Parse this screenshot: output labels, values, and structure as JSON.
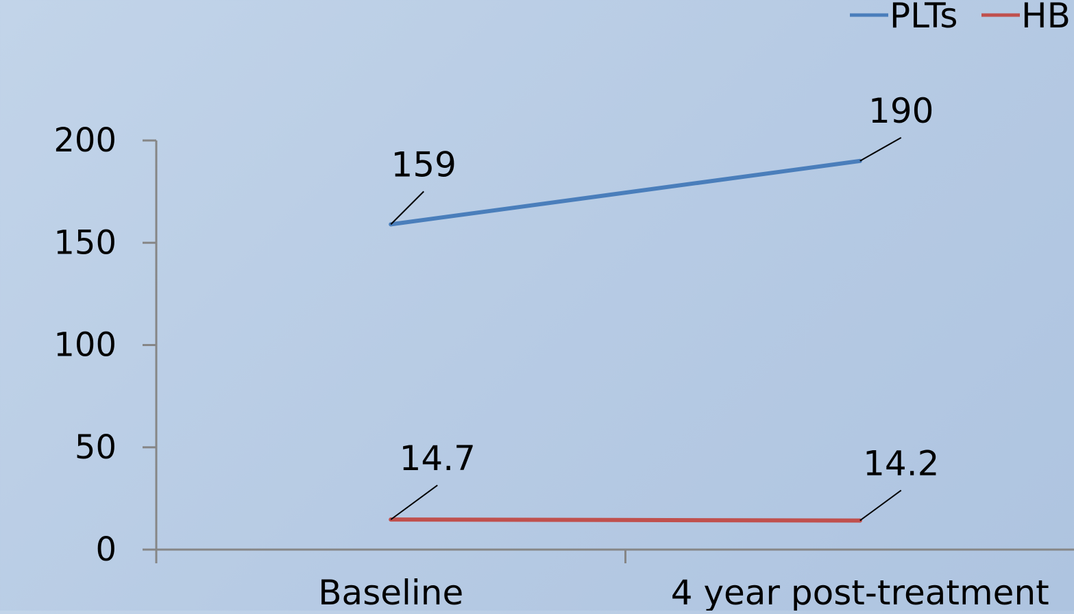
{
  "chart_data": {
    "type": "line",
    "title": "",
    "xlabel": "",
    "ylabel": "",
    "categories": [
      "Baseline",
      "4 year post-treatment"
    ],
    "series": [
      {
        "name": "PLTs",
        "values": [
          159,
          190
        ],
        "labels": [
          "159",
          "190"
        ],
        "color": "#4a7ebb"
      },
      {
        "name": "HB",
        "values": [
          14.7,
          14.2
        ],
        "labels": [
          "14.7",
          "14.2"
        ],
        "color": "#c0504d"
      }
    ],
    "ylim": [
      0,
      200
    ],
    "yticks": [
      0,
      50,
      100,
      150,
      200
    ],
    "grid": false,
    "legend": "top-right",
    "axis_color": "#868686",
    "leader_line_color": "#000000"
  }
}
